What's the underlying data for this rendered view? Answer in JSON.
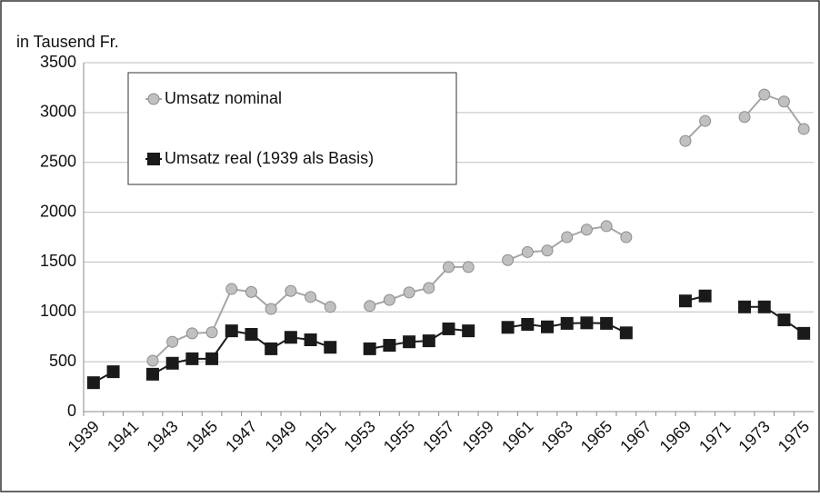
{
  "chart_data": {
    "type": "line",
    "y_label": "in Tausend Fr.",
    "categories": [
      "1939",
      null,
      "1941",
      null,
      "1943",
      null,
      "1945",
      null,
      "1947",
      null,
      "1949",
      null,
      "1951",
      null,
      "1953",
      null,
      "1955",
      null,
      "1957",
      null,
      "1959",
      null,
      "1961",
      null,
      "1963",
      null,
      "1965",
      null,
      "1967",
      null,
      "1969",
      null,
      "1971",
      null,
      "1973",
      null,
      "1975"
    ],
    "series": [
      {
        "name": "Umsatz nominal",
        "color": "#a6a6a6",
        "marker": "circle",
        "values": [
          null,
          null,
          null,
          510,
          700,
          785,
          795,
          1230,
          1200,
          1030,
          1210,
          1150,
          1050,
          null,
          1060,
          1120,
          1195,
          1240,
          1450,
          1450,
          null,
          1520,
          1600,
          1615,
          1750,
          1825,
          1860,
          1750,
          null,
          null,
          2715,
          2915,
          null,
          2955,
          3180,
          3110,
          2835
        ]
      },
      {
        "name": "Umsatz real (1939 als Basis)",
        "color": "#1a1a1a",
        "marker": "square",
        "values": [
          290,
          400,
          null,
          375,
          485,
          530,
          530,
          810,
          775,
          630,
          745,
          720,
          645,
          null,
          630,
          665,
          700,
          710,
          830,
          810,
          null,
          845,
          875,
          850,
          885,
          890,
          885,
          790,
          null,
          null,
          1110,
          1160,
          null,
          1050,
          1050,
          920,
          785
        ]
      }
    ],
    "ylim": [
      0,
      3500
    ],
    "yticks": [
      0,
      500,
      1000,
      1500,
      2000,
      2500,
      3000,
      3500
    ],
    "grid": true,
    "legend": "upper left"
  }
}
